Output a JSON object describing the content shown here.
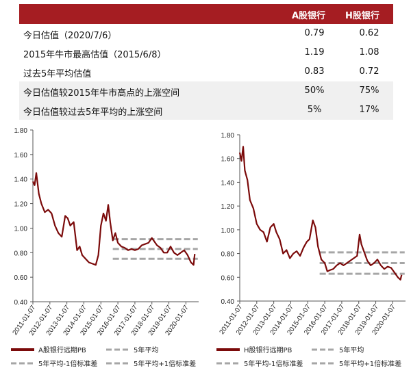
{
  "table": {
    "col_a": "A股银行",
    "col_h": "H股银行",
    "rows": [
      {
        "label": "今日估值（2020/7/6）",
        "a": "0.79",
        "h": "0.62"
      },
      {
        "label": "2015年牛市最高估值（2015/6/8）",
        "a": "1.19",
        "h": "1.08"
      },
      {
        "label": "过去5年平均估值",
        "a": "0.83",
        "h": "0.72"
      },
      {
        "label": "今日估值较2015年牛市高点的上涨空间",
        "a": "50%",
        "h": "75%"
      },
      {
        "label": "今日估值较过去5年平均的上涨空间",
        "a": "5%",
        "h": "17%"
      }
    ]
  },
  "colors": {
    "header_bg": "#a51d22",
    "series": "#7b0a0a",
    "bands": "#a6a6a6",
    "row_shade": "#f0f0f0"
  },
  "chart_data": [
    {
      "type": "line",
      "ylim": [
        0.4,
        1.8
      ],
      "yticks": [
        "0.40",
        "0.60",
        "0.80",
        "1.00",
        "1.20",
        "1.40",
        "1.60",
        "1.80"
      ],
      "xticks": [
        "2011-01-07",
        "2012-01-07",
        "2013-01-07",
        "2014-01-07",
        "2015-01-07",
        "2016-01-07",
        "2017-01-07",
        "2018-01-07",
        "2019-01-07",
        "2020-01-07"
      ],
      "series": [
        {
          "name": "A股银行远期PB",
          "x": [
            2011.0,
            2011.1,
            2011.2,
            2011.35,
            2011.5,
            2011.7,
            2011.9,
            2012.1,
            2012.3,
            2012.5,
            2012.7,
            2012.9,
            2013.05,
            2013.2,
            2013.4,
            2013.6,
            2013.75,
            2013.9,
            2014.1,
            2014.3,
            2014.5,
            2014.7,
            2014.85,
            2015.0,
            2015.15,
            2015.3,
            2015.43,
            2015.55,
            2015.7,
            2015.85,
            2016.0,
            2016.2,
            2016.4,
            2016.6,
            2016.8,
            2017.0,
            2017.2,
            2017.4,
            2017.6,
            2017.8,
            2018.0,
            2018.1,
            2018.3,
            2018.5,
            2018.7,
            2018.9,
            2019.1,
            2019.3,
            2019.5,
            2019.7,
            2019.9,
            2020.1,
            2020.3,
            2020.45,
            2020.52
          ],
          "values": [
            1.38,
            1.35,
            1.45,
            1.28,
            1.2,
            1.13,
            1.15,
            1.12,
            1.02,
            0.96,
            0.93,
            1.1,
            1.08,
            1.02,
            1.05,
            0.82,
            0.85,
            0.78,
            0.75,
            0.72,
            0.71,
            0.7,
            0.78,
            1.02,
            1.12,
            1.06,
            1.19,
            1.05,
            0.9,
            0.96,
            0.88,
            0.85,
            0.84,
            0.82,
            0.83,
            0.82,
            0.83,
            0.86,
            0.87,
            0.88,
            0.92,
            0.9,
            0.86,
            0.84,
            0.8,
            0.8,
            0.85,
            0.8,
            0.78,
            0.8,
            0.82,
            0.78,
            0.72,
            0.7,
            0.79
          ]
        },
        {
          "name": "5年平均",
          "x": [
            2015.7,
            2020.7
          ],
          "values": [
            0.83,
            0.83
          ]
        },
        {
          "name": "5年平均-1倍标准差",
          "x": [
            2015.7,
            2020.7
          ],
          "values": [
            0.75,
            0.75
          ]
        },
        {
          "name": "5年平均+1倍标准差",
          "x": [
            2015.7,
            2020.7
          ],
          "values": [
            0.91,
            0.91
          ]
        }
      ]
    },
    {
      "type": "line",
      "ylim": [
        0.4,
        1.8
      ],
      "yticks": [
        "0.40",
        "0.60",
        "0.80",
        "1.00",
        "1.20",
        "1.40",
        "1.60",
        "1.80"
      ],
      "xticks": [
        "2011-01-07",
        "2012-01-07",
        "2013-01-07",
        "2014-01-07",
        "2015-01-07",
        "2016-01-07",
        "2017-01-07",
        "2018-01-07",
        "2019-01-07",
        "2020-01-07"
      ],
      "series": [
        {
          "name": "H股银行远期PB",
          "x": [
            2011.0,
            2011.1,
            2011.2,
            2011.3,
            2011.45,
            2011.6,
            2011.8,
            2012.0,
            2012.2,
            2012.4,
            2012.6,
            2012.8,
            2013.0,
            2013.15,
            2013.35,
            2013.55,
            2013.75,
            2013.95,
            2014.15,
            2014.35,
            2014.55,
            2014.75,
            2014.95,
            2015.1,
            2015.3,
            2015.45,
            2015.6,
            2015.8,
            2016.0,
            2016.15,
            2016.3,
            2016.5,
            2016.7,
            2016.9,
            2017.1,
            2017.3,
            2017.5,
            2017.7,
            2017.9,
            2018.05,
            2018.15,
            2018.3,
            2018.5,
            2018.7,
            2018.9,
            2019.1,
            2019.3,
            2019.5,
            2019.7,
            2019.9,
            2020.1,
            2020.3,
            2020.45,
            2020.52
          ],
          "values": [
            1.65,
            1.58,
            1.7,
            1.5,
            1.42,
            1.25,
            1.18,
            1.05,
            1.0,
            0.98,
            0.9,
            1.02,
            1.05,
            0.98,
            0.92,
            0.8,
            0.83,
            0.76,
            0.8,
            0.82,
            0.78,
            0.85,
            0.9,
            0.92,
            1.08,
            1.02,
            0.86,
            0.75,
            0.72,
            0.65,
            0.66,
            0.67,
            0.7,
            0.72,
            0.7,
            0.72,
            0.74,
            0.76,
            0.78,
            0.96,
            0.88,
            0.82,
            0.74,
            0.7,
            0.72,
            0.75,
            0.7,
            0.67,
            0.69,
            0.68,
            0.64,
            0.6,
            0.58,
            0.62
          ]
        },
        {
          "name": "5年平均",
          "x": [
            2015.7,
            2020.7
          ],
          "values": [
            0.72,
            0.72
          ]
        },
        {
          "name": "5年平均-1倍标准差",
          "x": [
            2015.7,
            2020.7
          ],
          "values": [
            0.63,
            0.63
          ]
        },
        {
          "name": "5年平均+1倍标准差",
          "x": [
            2015.7,
            2020.7
          ],
          "values": [
            0.81,
            0.81
          ]
        }
      ]
    }
  ]
}
